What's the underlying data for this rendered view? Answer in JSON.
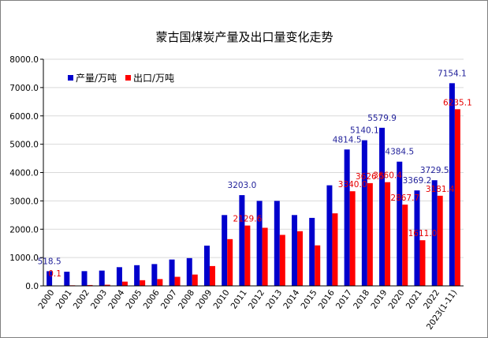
{
  "chart_data": {
    "type": "bar",
    "title": "蒙古国煤炭产量及出口量变化走势",
    "xlabel": "",
    "ylabel": "",
    "ylim": [
      0,
      8000
    ],
    "yticks": [
      "0.0",
      "1000.0",
      "2000.0",
      "3000.0",
      "4000.0",
      "5000.0",
      "6000.0",
      "7000.0",
      "8000.0"
    ],
    "grid": true,
    "legend_position": "top-left",
    "categories": [
      "2000",
      "2001",
      "2002",
      "2003",
      "2004",
      "2005",
      "2006",
      "2007",
      "2008",
      "2009",
      "2010",
      "2011",
      "2012",
      "2013",
      "2014",
      "2015",
      "2016",
      "2017",
      "2018",
      "2019",
      "2020",
      "2021",
      "2022",
      "2023(1-11)"
    ],
    "series": [
      {
        "name": "产量/万吨",
        "color": "#0000cc",
        "values": [
          518.5,
          500,
          520,
          540,
          660,
          730,
          770,
          930,
          980,
          1420,
          2500,
          3203.0,
          3000,
          3000,
          2500,
          2400,
          3550,
          4814.5,
          5140.1,
          5579.9,
          4384.5,
          3369.2,
          3729.5,
          7154.1
        ],
        "labels": [
          "518.5",
          "",
          "",
          "",
          "",
          "",
          "",
          "",
          "",
          "",
          "",
          "3203.0",
          "",
          "",
          "",
          "",
          "",
          "4814.5",
          "5140.1",
          "5579.9",
          "4384.5",
          "3369.2",
          "3729.5",
          "7154.1"
        ]
      },
      {
        "name": "出口/万吨",
        "color": "#ff0000",
        "values": [
          0.1,
          20,
          30,
          40,
          150,
          200,
          240,
          320,
          400,
          700,
          1650,
          2129.6,
          2050,
          1800,
          1930,
          1430,
          2560,
          3340.0,
          3626.5,
          3660.4,
          2867.7,
          1611.0,
          3181.4,
          6235.1
        ],
        "labels": [
          "0.1",
          "",
          "",
          "",
          "",
          "",
          "",
          "",
          "",
          "",
          "",
          "2129.6",
          "",
          "",
          "",
          "",
          "",
          "3340.0",
          "3626.5",
          "3660.4",
          "2867.7",
          "1611.0",
          "3181.4",
          "6235.1"
        ]
      }
    ]
  }
}
